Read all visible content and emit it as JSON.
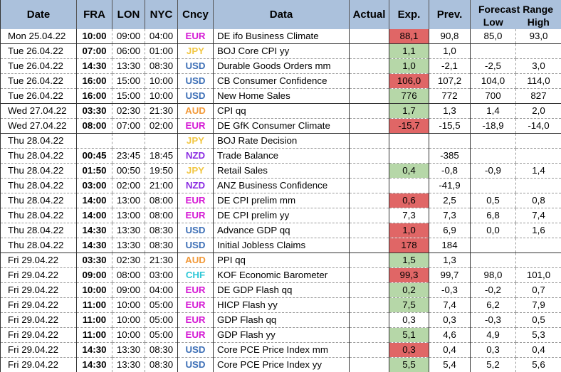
{
  "headers": {
    "date": "Date",
    "fra": "FRA",
    "lon": "LON",
    "nyc": "NYC",
    "cncy": "Cncy",
    "data": "Data",
    "actual": "Actual",
    "exp": "Exp.",
    "prev": "Prev.",
    "forecast_range": "Forecast Range",
    "low": "Low",
    "high": "High"
  },
  "currency_colors": {
    "EUR": "#d417d4",
    "JPY": "#f2c744",
    "USD": "#3d6fb6",
    "AUD": "#f29a3a",
    "NZD": "#8a2be2",
    "CHF": "#2ec7d6"
  },
  "highlight_colors": {
    "red": "#e06666",
    "green": "#b6d7a8"
  },
  "rows": [
    {
      "date": "Mon 25.04.22",
      "fra": "10:00",
      "lon": "09:00",
      "nyc": "04:00",
      "cncy": "EUR",
      "data": "DE ifo Business Climate",
      "actual": "",
      "exp": "88,1",
      "exp_hl": "red",
      "prev": "90,8",
      "low": "85,0",
      "high": "93,0",
      "group_end": true
    },
    {
      "date": "Tue 26.04.22",
      "fra": "07:00",
      "lon": "06:00",
      "nyc": "01:00",
      "cncy": "JPY",
      "data": "BOJ Core CPI yy",
      "actual": "",
      "exp": "1,1",
      "exp_hl": "green",
      "prev": "1,0",
      "low": "",
      "high": "",
      "group_end": false
    },
    {
      "date": "Tue 26.04.22",
      "fra": "14:30",
      "lon": "13:30",
      "nyc": "08:30",
      "cncy": "USD",
      "data": "Durable Goods Orders mm",
      "actual": "",
      "exp": "1,0",
      "exp_hl": "green",
      "prev": "-2,1",
      "low": "-2,5",
      "high": "3,0",
      "group_end": false
    },
    {
      "date": "Tue 26.04.22",
      "fra": "16:00",
      "lon": "15:00",
      "nyc": "10:00",
      "cncy": "USD",
      "data": "CB Consumer Confidence",
      "actual": "",
      "exp": "106,0",
      "exp_hl": "red",
      "prev": "107,2",
      "low": "104,0",
      "high": "114,0",
      "group_end": false
    },
    {
      "date": "Tue 26.04.22",
      "fra": "16:00",
      "lon": "15:00",
      "nyc": "10:00",
      "cncy": "USD",
      "data": "New Home Sales",
      "actual": "",
      "exp": "776",
      "exp_hl": "green",
      "prev": "772",
      "low": "700",
      "high": "827",
      "group_end": true
    },
    {
      "date": "Wed 27.04.22",
      "fra": "03:30",
      "lon": "02:30",
      "nyc": "21:30",
      "cncy": "AUD",
      "data": "CPI qq",
      "actual": "",
      "exp": "1,7",
      "exp_hl": "green",
      "prev": "1,3",
      "low": "1,4",
      "high": "2,0",
      "group_end": false
    },
    {
      "date": "Wed 27.04.22",
      "fra": "08:00",
      "lon": "07:00",
      "nyc": "02:00",
      "cncy": "EUR",
      "data": "DE GfK Consumer Climate",
      "actual": "",
      "exp": "-15,7",
      "exp_hl": "red",
      "prev": "-15,5",
      "low": "-18,9",
      "high": "-14,0",
      "group_end": true
    },
    {
      "date": "Thu 28.04.22",
      "fra": "",
      "lon": "",
      "nyc": "",
      "cncy": "JPY",
      "data": "BOJ Rate Decision",
      "actual": "",
      "exp": "",
      "exp_hl": "",
      "prev": "",
      "low": "",
      "high": "",
      "group_end": false
    },
    {
      "date": "Thu 28.04.22",
      "fra": "00:45",
      "lon": "23:45",
      "nyc": "18:45",
      "cncy": "NZD",
      "data": "Trade Balance",
      "actual": "",
      "exp": "",
      "exp_hl": "",
      "prev": "-385",
      "low": "",
      "high": "",
      "group_end": false
    },
    {
      "date": "Thu 28.04.22",
      "fra": "01:50",
      "lon": "00:50",
      "nyc": "19:50",
      "cncy": "JPY",
      "data": "Retail Sales",
      "actual": "",
      "exp": "0,4",
      "exp_hl": "green",
      "prev": "-0,8",
      "low": "-0,9",
      "high": "1,4",
      "group_end": false
    },
    {
      "date": "Thu 28.04.22",
      "fra": "03:00",
      "lon": "02:00",
      "nyc": "21:00",
      "cncy": "NZD",
      "data": "ANZ Business Confidence",
      "actual": "",
      "exp": "",
      "exp_hl": "",
      "prev": "-41,9",
      "low": "",
      "high": "",
      "group_end": false
    },
    {
      "date": "Thu 28.04.22",
      "fra": "14:00",
      "lon": "13:00",
      "nyc": "08:00",
      "cncy": "EUR",
      "data": "DE CPI prelim mm",
      "actual": "",
      "exp": "0,6",
      "exp_hl": "red",
      "prev": "2,5",
      "low": "0,5",
      "high": "0,8",
      "group_end": false
    },
    {
      "date": "Thu 28.04.22",
      "fra": "14:00",
      "lon": "13:00",
      "nyc": "08:00",
      "cncy": "EUR",
      "data": "DE CPI prelim yy",
      "actual": "",
      "exp": "7,3",
      "exp_hl": "",
      "prev": "7,3",
      "low": "6,8",
      "high": "7,4",
      "group_end": false
    },
    {
      "date": "Thu 28.04.22",
      "fra": "14:30",
      "lon": "13:30",
      "nyc": "08:30",
      "cncy": "USD",
      "data": "Advance GDP qq",
      "actual": "",
      "exp": "1,0",
      "exp_hl": "red",
      "prev": "6,9",
      "low": "0,0",
      "high": "1,6",
      "group_end": false
    },
    {
      "date": "Thu 28.04.22",
      "fra": "14:30",
      "lon": "13:30",
      "nyc": "08:30",
      "cncy": "USD",
      "data": "Initial Jobless Claims",
      "actual": "",
      "exp": "178",
      "exp_hl": "red",
      "prev": "184",
      "low": "",
      "high": "",
      "group_end": true
    },
    {
      "date": "Fri 29.04.22",
      "fra": "03:30",
      "lon": "02:30",
      "nyc": "21:30",
      "cncy": "AUD",
      "data": "PPI qq",
      "actual": "",
      "exp": "1,5",
      "exp_hl": "green",
      "prev": "1,3",
      "low": "",
      "high": "",
      "group_end": false
    },
    {
      "date": "Fri 29.04.22",
      "fra": "09:00",
      "lon": "08:00",
      "nyc": "03:00",
      "cncy": "CHF",
      "data": "KOF Economic Barometer",
      "actual": "",
      "exp": "99,3",
      "exp_hl": "red",
      "prev": "99,7",
      "low": "98,0",
      "high": "101,0",
      "group_end": false
    },
    {
      "date": "Fri 29.04.22",
      "fra": "10:00",
      "lon": "09:00",
      "nyc": "04:00",
      "cncy": "EUR",
      "data": "DE GDP Flash qq",
      "actual": "",
      "exp": "0,2",
      "exp_hl": "green",
      "prev": "-0,3",
      "low": "-0,2",
      "high": "0,7",
      "group_end": false
    },
    {
      "date": "Fri 29.04.22",
      "fra": "11:00",
      "lon": "10:00",
      "nyc": "05:00",
      "cncy": "EUR",
      "data": "HICP Flash yy",
      "actual": "",
      "exp": "7,5",
      "exp_hl": "green",
      "prev": "7,4",
      "low": "6,2",
      "high": "7,9",
      "group_end": false
    },
    {
      "date": "Fri 29.04.22",
      "fra": "11:00",
      "lon": "10:00",
      "nyc": "05:00",
      "cncy": "EUR",
      "data": "GDP Flash qq",
      "actual": "",
      "exp": "0,3",
      "exp_hl": "",
      "prev": "0,3",
      "low": "-0,3",
      "high": "0,5",
      "group_end": false
    },
    {
      "date": "Fri 29.04.22",
      "fra": "11:00",
      "lon": "10:00",
      "nyc": "05:00",
      "cncy": "EUR",
      "data": "GDP Flash yy",
      "actual": "",
      "exp": "5,1",
      "exp_hl": "green",
      "prev": "4,6",
      "low": "4,9",
      "high": "5,3",
      "group_end": false
    },
    {
      "date": "Fri 29.04.22",
      "fra": "14:30",
      "lon": "13:30",
      "nyc": "08:30",
      "cncy": "USD",
      "data": "Core PCE Price Index mm",
      "actual": "",
      "exp": "0,3",
      "exp_hl": "red",
      "prev": "0,4",
      "low": "0,3",
      "high": "0,4",
      "group_end": false
    },
    {
      "date": "Fri 29.04.22",
      "fra": "14:30",
      "lon": "13:30",
      "nyc": "08:30",
      "cncy": "USD",
      "data": "Core PCE Price Index yy",
      "actual": "",
      "exp": "5,5",
      "exp_hl": "green",
      "prev": "5,4",
      "low": "5,2",
      "high": "5,6",
      "group_end": false
    }
  ]
}
